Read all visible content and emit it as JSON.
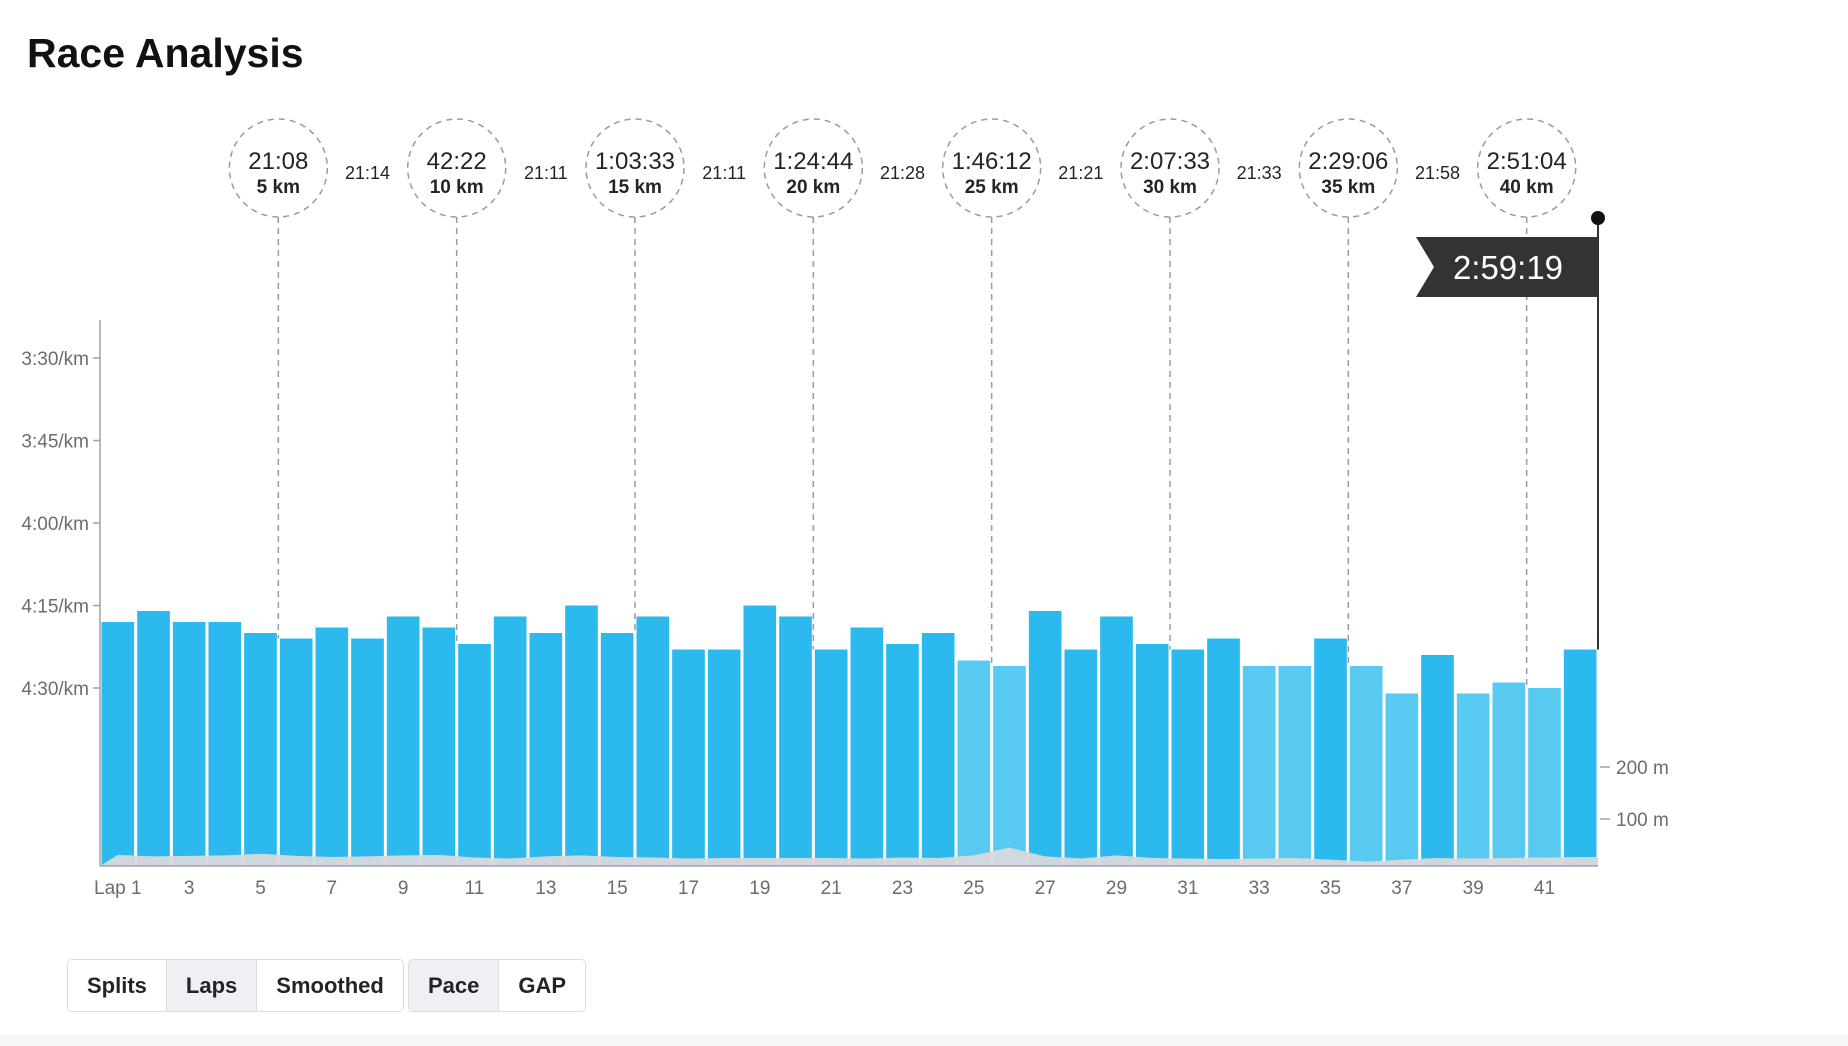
{
  "page": {
    "title": "Race Analysis"
  },
  "colors": {
    "bar_fast": "#2cb9ee",
    "bar_slow": "#58caf2",
    "elevation": "#d8d8dc",
    "axis": "#a0a0a8",
    "text": "#242428",
    "finish_flag_bg": "#333333",
    "finish_flag_text": "#ffffff"
  },
  "controls": {
    "view": [
      {
        "label": "Splits",
        "active": false
      },
      {
        "label": "Laps",
        "active": true
      },
      {
        "label": "Smoothed",
        "active": false
      }
    ],
    "metric": [
      {
        "label": "Pace",
        "active": true
      },
      {
        "label": "GAP",
        "active": false
      }
    ]
  },
  "chart_data": {
    "type": "bar",
    "xlabel": "",
    "ylabel": "",
    "x_unit_prefix": "Lap",
    "laps": [
      1,
      2,
      3,
      4,
      5,
      6,
      7,
      8,
      9,
      10,
      11,
      12,
      13,
      14,
      15,
      16,
      17,
      18,
      19,
      20,
      21,
      22,
      23,
      24,
      25,
      26,
      27,
      28,
      29,
      30,
      31,
      32,
      33,
      34,
      35,
      36,
      37,
      38,
      39,
      40,
      41,
      42
    ],
    "x_tick_labels": [
      "Lap 1",
      "3",
      "5",
      "7",
      "9",
      "11",
      "13",
      "15",
      "17",
      "19",
      "21",
      "23",
      "25",
      "27",
      "29",
      "31",
      "33",
      "35",
      "37",
      "39",
      "41"
    ],
    "pace_sec_per_km": [
      258,
      256,
      258,
      258,
      260,
      261,
      259,
      261,
      257,
      259,
      262,
      257,
      260,
      255,
      260,
      257,
      263,
      263,
      255,
      257,
      263,
      259,
      262,
      260,
      265,
      266,
      256,
      263,
      257,
      262,
      263,
      261,
      266,
      266,
      261,
      266,
      271,
      264,
      271,
      269,
      270,
      263
    ],
    "y_axis": {
      "ticks": [
        "3:30/km",
        "3:45/km",
        "4:00/km",
        "4:15/km",
        "4:30/km"
      ],
      "tick_values_sec": [
        210,
        225,
        240,
        255,
        270
      ],
      "inverted": true
    },
    "elevation_axis": {
      "ticks": [
        "200 m",
        "100 m"
      ],
      "tick_values_m": [
        200,
        100
      ]
    },
    "elevation_m": [
      31,
      28,
      29,
      30,
      33,
      29,
      27,
      28,
      30,
      31,
      26,
      24,
      28,
      30,
      27,
      26,
      24,
      25,
      25,
      25,
      25,
      24,
      26,
      25,
      30,
      45,
      28,
      24,
      30,
      25,
      24,
      23,
      24,
      25,
      22,
      18,
      22,
      25,
      24,
      25,
      26,
      27
    ],
    "splits": [
      {
        "time": "21:08",
        "distance": "5 km",
        "lap": 5.5
      },
      {
        "time": "42:22",
        "distance": "10 km",
        "lap": 10.5
      },
      {
        "time": "1:03:33",
        "distance": "15 km",
        "lap": 15.5
      },
      {
        "time": "1:24:44",
        "distance": "20 km",
        "lap": 20.5
      },
      {
        "time": "1:46:12",
        "distance": "25 km",
        "lap": 25.5
      },
      {
        "time": "2:07:33",
        "distance": "30 km",
        "lap": 30.5
      },
      {
        "time": "2:29:06",
        "distance": "35 km",
        "lap": 35.5
      },
      {
        "time": "2:51:04",
        "distance": "40 km",
        "lap": 40.5
      }
    ],
    "segment_times": [
      "21:14",
      "21:11",
      "21:11",
      "21:28",
      "21:21",
      "21:33",
      "21:58"
    ],
    "finish_time": "2:59:19"
  }
}
